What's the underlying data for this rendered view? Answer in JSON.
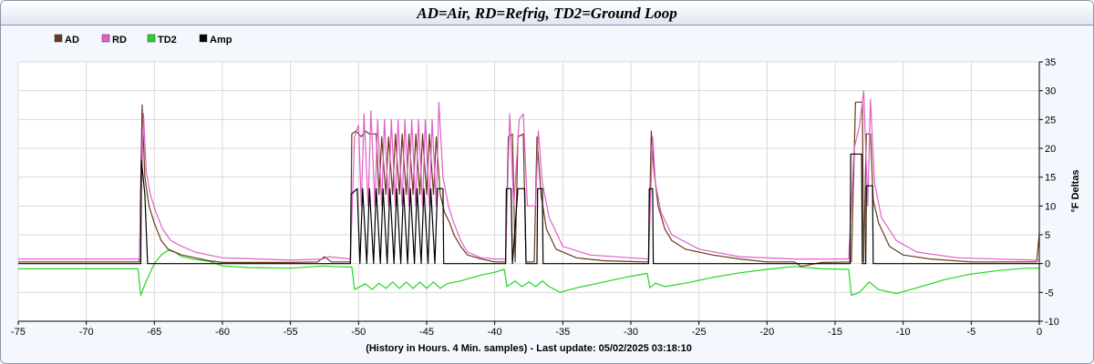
{
  "chart_data": {
    "type": "line",
    "title": "AD=Air, RD=Refrig, TD2=Ground Loop",
    "xlabel": "(History in Hours. 4 Min. samples) - Last update: 05/02/2025 03:18:10",
    "ylabel": "°F Deltas",
    "xlim": [
      -75,
      0
    ],
    "ylim": [
      -10,
      35
    ],
    "x_ticks": [
      "-75",
      "-70",
      "-65",
      "-60",
      "-55",
      "-50",
      "-45",
      "-40",
      "-35",
      "-30",
      "-25",
      "-20",
      "-15",
      "-10",
      "-5",
      "0"
    ],
    "y_ticks": [
      "35",
      "30",
      "25",
      "20",
      "15",
      "10",
      "5",
      "0",
      "-5",
      "-10"
    ],
    "grid": true,
    "legend_position": "top-left",
    "series": [
      {
        "name": "AD",
        "color": "#6b3a1a",
        "points": [
          [
            -75,
            0.3
          ],
          [
            -66.1,
            0.3
          ],
          [
            -65.9,
            27.5
          ],
          [
            -65.7,
            15
          ],
          [
            -65.4,
            10
          ],
          [
            -65,
            7
          ],
          [
            -64.5,
            4
          ],
          [
            -64,
            2.5
          ],
          [
            -63,
            1.5
          ],
          [
            -62,
            1
          ],
          [
            -61,
            0.5
          ],
          [
            -60,
            0.2
          ],
          [
            -55,
            0.2
          ],
          [
            -53,
            0.3
          ],
          [
            -52.5,
            1.2
          ],
          [
            -52,
            0.3
          ],
          [
            -50.6,
            0.3
          ],
          [
            -50.5,
            22.5
          ],
          [
            -50.2,
            23
          ],
          [
            -49.8,
            22
          ],
          [
            -49.5,
            23
          ],
          [
            -49.2,
            22.5
          ],
          [
            -48.7,
            22.5
          ],
          [
            -48.5,
            12
          ],
          [
            -48.3,
            22
          ],
          [
            -48,
            12
          ],
          [
            -47.8,
            22
          ],
          [
            -47.5,
            12
          ],
          [
            -47.3,
            22.5
          ],
          [
            -47,
            12
          ],
          [
            -46.8,
            22.5
          ],
          [
            -46.5,
            12
          ],
          [
            -46.3,
            22.5
          ],
          [
            -46,
            12
          ],
          [
            -45.8,
            22.5
          ],
          [
            -45.5,
            12
          ],
          [
            -45.3,
            22.5
          ],
          [
            -45,
            12
          ],
          [
            -44.8,
            22.5
          ],
          [
            -44.5,
            12
          ],
          [
            -44.3,
            22
          ],
          [
            -44,
            12
          ],
          [
            -43.7,
            9
          ],
          [
            -43.3,
            7
          ],
          [
            -43,
            5
          ],
          [
            -42.5,
            3
          ],
          [
            -42,
            1.5
          ],
          [
            -41,
            0.8
          ],
          [
            -40,
            0.3
          ],
          [
            -39.2,
            0.3
          ],
          [
            -39,
            22
          ],
          [
            -38.7,
            22.5
          ],
          [
            -38.5,
            0.3
          ],
          [
            -38.3,
            22
          ],
          [
            -37.9,
            22.5
          ],
          [
            -37.7,
            0.3
          ],
          [
            -37.1,
            0.3
          ],
          [
            -36.9,
            22
          ],
          [
            -36.6,
            12
          ],
          [
            -36.2,
            6
          ],
          [
            -35.5,
            2.5
          ],
          [
            -34,
            1
          ],
          [
            -32,
            0.5
          ],
          [
            -29,
            0.3
          ],
          [
            -28.7,
            0.3
          ],
          [
            -28.5,
            23
          ],
          [
            -28.3,
            16
          ],
          [
            -28,
            10
          ],
          [
            -27.5,
            6
          ],
          [
            -27,
            4
          ],
          [
            -26,
            2.5
          ],
          [
            -24,
            1.5
          ],
          [
            -22,
            0.8
          ],
          [
            -20,
            0.3
          ],
          [
            -18,
            0.3
          ],
          [
            -17.5,
            -0.5
          ],
          [
            -16,
            0.2
          ],
          [
            -13.8,
            0.3
          ],
          [
            -13.5,
            28
          ],
          [
            -13,
            28
          ],
          [
            -12.9,
            0.3
          ],
          [
            -12.7,
            22.5
          ],
          [
            -12.4,
            22.5
          ],
          [
            -12.2,
            11
          ],
          [
            -11.8,
            7
          ],
          [
            -11,
            3
          ],
          [
            -10,
            1.5
          ],
          [
            -8,
            0.8
          ],
          [
            -5,
            0.3
          ],
          [
            -0.2,
            0.3
          ],
          [
            0,
            5
          ]
        ]
      },
      {
        "name": "RD",
        "color": "#e060c8",
        "points": [
          [
            -75,
            0.8
          ],
          [
            -66.1,
            0.8
          ],
          [
            -65.8,
            26
          ],
          [
            -65.6,
            16
          ],
          [
            -65.3,
            12
          ],
          [
            -64.9,
            9
          ],
          [
            -64.4,
            6
          ],
          [
            -63.8,
            4
          ],
          [
            -63,
            3
          ],
          [
            -62,
            2
          ],
          [
            -61,
            1.5
          ],
          [
            -60,
            1
          ],
          [
            -55,
            0.6
          ],
          [
            -52.6,
            0.8
          ],
          [
            -52.2,
            1.2
          ],
          [
            -50.6,
            0.8
          ],
          [
            -50.3,
            22
          ],
          [
            -50,
            24
          ],
          [
            -49.8,
            10
          ],
          [
            -49.6,
            26
          ],
          [
            -49.3,
            10
          ],
          [
            -49.1,
            26.5
          ],
          [
            -48.8,
            10
          ],
          [
            -48.6,
            25
          ],
          [
            -48.3,
            10
          ],
          [
            -48.1,
            25
          ],
          [
            -47.8,
            10
          ],
          [
            -47.6,
            25
          ],
          [
            -47.3,
            10
          ],
          [
            -47.1,
            25
          ],
          [
            -46.8,
            10
          ],
          [
            -46.6,
            25
          ],
          [
            -46.3,
            10
          ],
          [
            -46.1,
            25
          ],
          [
            -45.8,
            10
          ],
          [
            -45.6,
            25
          ],
          [
            -45.3,
            10
          ],
          [
            -45.1,
            25
          ],
          [
            -44.8,
            10
          ],
          [
            -44.6,
            25
          ],
          [
            -44.3,
            10
          ],
          [
            -44.1,
            28
          ],
          [
            -43.8,
            15
          ],
          [
            -43.4,
            10
          ],
          [
            -43,
            7
          ],
          [
            -42.5,
            4
          ],
          [
            -42,
            2
          ],
          [
            -41,
            1
          ],
          [
            -40,
            0.8
          ],
          [
            -39.2,
            0.8
          ],
          [
            -38.9,
            26
          ],
          [
            -38.6,
            10
          ],
          [
            -38.2,
            25
          ],
          [
            -37.9,
            26
          ],
          [
            -37.6,
            10
          ],
          [
            -37,
            10
          ],
          [
            -36.8,
            23
          ],
          [
            -36.5,
            14
          ],
          [
            -36,
            8
          ],
          [
            -35,
            3
          ],
          [
            -33,
            1.5
          ],
          [
            -30,
            1
          ],
          [
            -28.7,
            0.8
          ],
          [
            -28.4,
            22
          ],
          [
            -28.2,
            14
          ],
          [
            -27.8,
            9
          ],
          [
            -27,
            5
          ],
          [
            -25,
            2.5
          ],
          [
            -22,
            1.2
          ],
          [
            -18,
            0.8
          ],
          [
            -14,
            0.8
          ],
          [
            -13.6,
            20
          ],
          [
            -13.2,
            24
          ],
          [
            -12.9,
            30
          ],
          [
            -12.6,
            10
          ],
          [
            -12.4,
            28.5
          ],
          [
            -12.1,
            14
          ],
          [
            -11.6,
            8
          ],
          [
            -10.5,
            4
          ],
          [
            -9,
            2
          ],
          [
            -6,
            1
          ],
          [
            -0.2,
            0.6
          ],
          [
            0,
            0.6
          ]
        ]
      },
      {
        "name": "TD2",
        "color": "#22d622",
        "points": [
          [
            -75,
            -0.9
          ],
          [
            -66.2,
            -0.9
          ],
          [
            -66,
            -5.5
          ],
          [
            -65.6,
            -3
          ],
          [
            -65,
            0
          ],
          [
            -64.5,
            1.5
          ],
          [
            -64,
            2.3
          ],
          [
            -63.5,
            2
          ],
          [
            -63,
            1.2
          ],
          [
            -62,
            0.7
          ],
          [
            -61,
            0.4
          ],
          [
            -60,
            -0.4
          ],
          [
            -58,
            -0.7
          ],
          [
            -55,
            -0.8
          ],
          [
            -52.5,
            -0.4
          ],
          [
            -52,
            -0.5
          ],
          [
            -50.5,
            -0.6
          ],
          [
            -50.3,
            -4.5
          ],
          [
            -49.5,
            -3.5
          ],
          [
            -49,
            -4.5
          ],
          [
            -48.5,
            -3.4
          ],
          [
            -48,
            -4.3
          ],
          [
            -47.5,
            -3.2
          ],
          [
            -47,
            -4.3
          ],
          [
            -46.5,
            -3.2
          ],
          [
            -46,
            -4.3
          ],
          [
            -45.5,
            -3.2
          ],
          [
            -45,
            -4.3
          ],
          [
            -44.5,
            -3.2
          ],
          [
            -44,
            -4.3
          ],
          [
            -43.5,
            -3.5
          ],
          [
            -42.5,
            -3
          ],
          [
            -41,
            -2
          ],
          [
            -40,
            -1.5
          ],
          [
            -39.3,
            -1
          ],
          [
            -39.1,
            -4
          ],
          [
            -38.5,
            -3
          ],
          [
            -38,
            -4
          ],
          [
            -37.5,
            -3.2
          ],
          [
            -37,
            -4
          ],
          [
            -36.5,
            -3
          ],
          [
            -36,
            -4
          ],
          [
            -35.2,
            -5
          ],
          [
            -34,
            -4.2
          ],
          [
            -32,
            -3.2
          ],
          [
            -30,
            -2.2
          ],
          [
            -28.8,
            -1.7
          ],
          [
            -28.6,
            -4.2
          ],
          [
            -28.2,
            -3.4
          ],
          [
            -27.5,
            -4
          ],
          [
            -26,
            -3.4
          ],
          [
            -24,
            -2.4
          ],
          [
            -22,
            -1.6
          ],
          [
            -20,
            -1
          ],
          [
            -18,
            -0.5
          ],
          [
            -16,
            -0.9
          ],
          [
            -14,
            -1
          ],
          [
            -13.8,
            -5.5
          ],
          [
            -13.2,
            -5
          ],
          [
            -12.5,
            -3.2
          ],
          [
            -11.8,
            -4.5
          ],
          [
            -10.5,
            -5.2
          ],
          [
            -9,
            -4.2
          ],
          [
            -7,
            -2.8
          ],
          [
            -5,
            -1.8
          ],
          [
            -3,
            -1.2
          ],
          [
            -1,
            -0.8
          ],
          [
            0,
            -0.8
          ]
        ]
      },
      {
        "name": "Amp",
        "color": "#000000",
        "points": [
          [
            -75,
            0
          ],
          [
            -66,
            0
          ],
          [
            -65.95,
            18
          ],
          [
            -65.7,
            12
          ],
          [
            -65.5,
            0
          ],
          [
            -50.6,
            0
          ],
          [
            -50.55,
            12
          ],
          [
            -50.1,
            13
          ],
          [
            -49.9,
            0
          ],
          [
            -49.7,
            13
          ],
          [
            -49.4,
            0
          ],
          [
            -49.2,
            13
          ],
          [
            -48.9,
            0
          ],
          [
            -48.7,
            13
          ],
          [
            -48.4,
            0
          ],
          [
            -48.2,
            13
          ],
          [
            -47.9,
            0
          ],
          [
            -47.7,
            13
          ],
          [
            -47.4,
            0
          ],
          [
            -47.2,
            13
          ],
          [
            -46.9,
            0
          ],
          [
            -46.7,
            13
          ],
          [
            -46.4,
            0
          ],
          [
            -46.2,
            13
          ],
          [
            -45.9,
            0
          ],
          [
            -45.7,
            13
          ],
          [
            -45.4,
            0
          ],
          [
            -45.2,
            13
          ],
          [
            -44.9,
            0
          ],
          [
            -44.7,
            13
          ],
          [
            -44.4,
            0
          ],
          [
            -44.2,
            13
          ],
          [
            -43.8,
            13
          ],
          [
            -43.75,
            0
          ],
          [
            -39.2,
            0
          ],
          [
            -39.15,
            13
          ],
          [
            -38.8,
            13
          ],
          [
            -38.7,
            0
          ],
          [
            -38.3,
            13
          ],
          [
            -37.8,
            13
          ],
          [
            -37.7,
            0
          ],
          [
            -36.9,
            0
          ],
          [
            -36.85,
            13
          ],
          [
            -36.5,
            13
          ],
          [
            -36.45,
            0
          ],
          [
            -28.7,
            0
          ],
          [
            -28.65,
            13
          ],
          [
            -28.4,
            13
          ],
          [
            -28.35,
            0
          ],
          [
            -13.9,
            0
          ],
          [
            -13.85,
            19
          ],
          [
            -13.05,
            19
          ],
          [
            -13,
            0
          ],
          [
            -12.75,
            0
          ],
          [
            -12.7,
            13.5
          ],
          [
            -12.25,
            13.5
          ],
          [
            -12.2,
            0
          ],
          [
            0,
            0
          ]
        ]
      }
    ]
  }
}
